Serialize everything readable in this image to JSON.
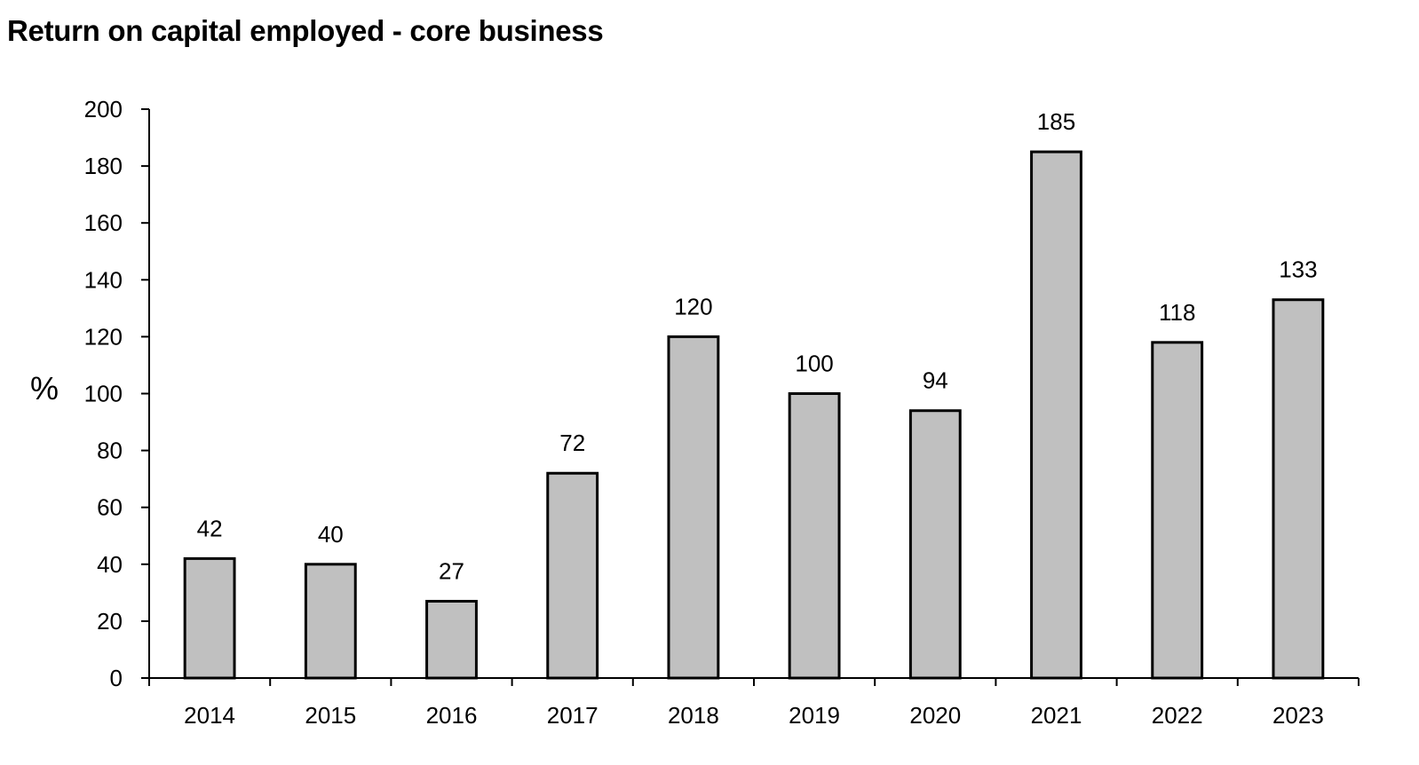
{
  "chart_data": {
    "type": "bar",
    "title": "Return on capital employed - core business",
    "ylabel": "%",
    "xlabel": "",
    "categories": [
      "2014",
      "2015",
      "2016",
      "2017",
      "2018",
      "2019",
      "2020",
      "2021",
      "2022",
      "2023"
    ],
    "values": [
      42,
      40,
      27,
      72,
      120,
      100,
      94,
      185,
      118,
      133
    ],
    "ylim": [
      0,
      200
    ],
    "yticks": [
      0,
      20,
      40,
      60,
      80,
      100,
      120,
      140,
      160,
      180,
      200
    ],
    "grid": false,
    "legend": "none",
    "data_labels": true,
    "colors": {
      "bar_fill": "#c0c0c0",
      "bar_stroke": "#000000",
      "axis": "#000000",
      "text": "#000000"
    }
  }
}
